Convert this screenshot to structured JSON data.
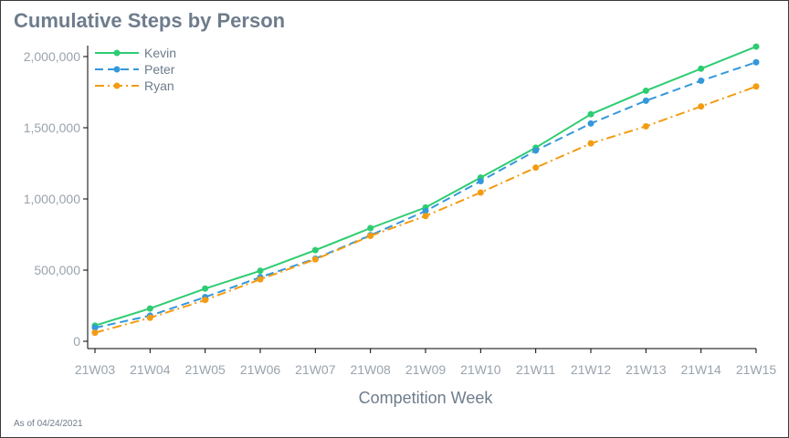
{
  "chart_data": {
    "type": "line",
    "title": "Cumulative Steps by Person",
    "xlabel": "Competition Week",
    "ylabel": "",
    "footnote": "As of 04/24/2021",
    "categories": [
      "21W03",
      "21W04",
      "21W05",
      "21W06",
      "21W07",
      "21W08",
      "21W09",
      "21W10",
      "21W11",
      "21W12",
      "21W13",
      "21W14",
      "21W15"
    ],
    "y_ticks": [
      0,
      500000,
      1000000,
      1500000,
      2000000
    ],
    "y_tick_labels": [
      "0",
      "500,000",
      "1,000,000",
      "1,500,000",
      "2,000,000"
    ],
    "ylim": [
      0,
      2070000
    ],
    "legend_position": "top-left",
    "grid": false,
    "series": [
      {
        "name": "Kevin",
        "color": "#2ecc71",
        "dash": "solid",
        "values": [
          110000,
          230000,
          370000,
          495000,
          640000,
          795000,
          940000,
          1150000,
          1360000,
          1595000,
          1760000,
          1915000,
          2070000
        ]
      },
      {
        "name": "Peter",
        "color": "#3498db",
        "dash": "dashed",
        "values": [
          95000,
          180000,
          310000,
          450000,
          580000,
          745000,
          915000,
          1125000,
          1340000,
          1530000,
          1690000,
          1830000,
          1960000
        ]
      },
      {
        "name": "Ryan",
        "color": "#f39c12",
        "dash": "dashdot",
        "values": [
          60000,
          165000,
          290000,
          435000,
          575000,
          740000,
          880000,
          1045000,
          1220000,
          1390000,
          1510000,
          1650000,
          1790000
        ]
      }
    ]
  }
}
